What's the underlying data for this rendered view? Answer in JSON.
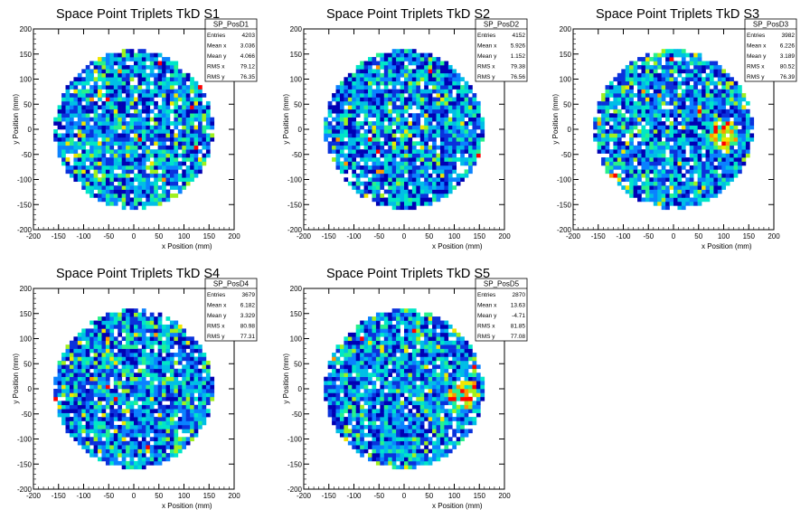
{
  "chart_data": [
    {
      "type": "heatmap",
      "title": "Space Point Triplets TkD S1",
      "xlabel": "x Position (mm)",
      "ylabel": "y Position (mm)",
      "xlim": [
        -200,
        200
      ],
      "ylim": [
        -200,
        200
      ],
      "xticks": [
        -200,
        -150,
        -100,
        -50,
        0,
        50,
        100,
        150,
        200
      ],
      "yticks": [
        -200,
        -150,
        -100,
        -50,
        0,
        50,
        100,
        150,
        200
      ],
      "detector_radius_mm": 160,
      "bin_width_mm": 8,
      "stats": {
        "name": "SP_PosD1",
        "rows": [
          [
            "Entries",
            "4203"
          ],
          [
            "Mean x",
            "3.036"
          ],
          [
            "Mean y",
            "4.066"
          ],
          [
            "RMS x",
            "79.12"
          ],
          [
            "RMS y",
            "76.35"
          ]
        ]
      },
      "seed": 11,
      "hot_spot": null
    },
    {
      "type": "heatmap",
      "title": "Space Point Triplets TkD S2",
      "xlabel": "x Position (mm)",
      "ylabel": "y Position (mm)",
      "xlim": [
        -200,
        200
      ],
      "ylim": [
        -200,
        200
      ],
      "xticks": [
        -200,
        -150,
        -100,
        -50,
        0,
        50,
        100,
        150,
        200
      ],
      "yticks": [
        -200,
        -150,
        -100,
        -50,
        0,
        50,
        100,
        150,
        200
      ],
      "detector_radius_mm": 160,
      "bin_width_mm": 8,
      "stats": {
        "name": "SP_PosD2",
        "rows": [
          [
            "Entries",
            "4152"
          ],
          [
            "Mean x",
            "5.926"
          ],
          [
            "Mean y",
            "1.152"
          ],
          [
            "RMS x",
            "79.38"
          ],
          [
            "RMS y",
            "76.56"
          ]
        ]
      },
      "seed": 23,
      "hot_spot": null
    },
    {
      "type": "heatmap",
      "title": "Space Point Triplets TkD S3",
      "xlabel": "x Position (mm)",
      "ylabel": "y Position (mm)",
      "xlim": [
        -200,
        200
      ],
      "ylim": [
        -200,
        200
      ],
      "xticks": [
        -200,
        -150,
        -100,
        -50,
        0,
        50,
        100,
        150,
        200
      ],
      "yticks": [
        -200,
        -150,
        -100,
        -50,
        0,
        50,
        100,
        150,
        200
      ],
      "detector_radius_mm": 160,
      "bin_width_mm": 8,
      "stats": {
        "name": "SP_PosD3",
        "rows": [
          [
            "Entries",
            "3982"
          ],
          [
            "Mean x",
            "6.226"
          ],
          [
            "Mean y",
            "3.189"
          ],
          [
            "RMS x",
            "80.52"
          ],
          [
            "RMS y",
            "76.39"
          ]
        ]
      },
      "seed": 37,
      "hot_spot": [
        100,
        -10
      ]
    },
    {
      "type": "heatmap",
      "title": "Space Point Triplets TkD S4",
      "xlabel": "x Position (mm)",
      "ylabel": "y Position (mm)",
      "xlim": [
        -200,
        200
      ],
      "ylim": [
        -200,
        200
      ],
      "xticks": [
        -200,
        -150,
        -100,
        -50,
        0,
        50,
        100,
        150,
        200
      ],
      "yticks": [
        -200,
        -150,
        -100,
        -50,
        0,
        50,
        100,
        150,
        200
      ],
      "detector_radius_mm": 160,
      "bin_width_mm": 8,
      "stats": {
        "name": "SP_PosD4",
        "rows": [
          [
            "Entries",
            "3679"
          ],
          [
            "Mean x",
            "6.182"
          ],
          [
            "Mean y",
            "3.329"
          ],
          [
            "RMS x",
            "80.98"
          ],
          [
            "RMS y",
            "77.31"
          ]
        ]
      },
      "seed": 41,
      "hot_spot": null
    },
    {
      "type": "heatmap",
      "title": "Space Point Triplets TkD S5",
      "xlabel": "x Position (mm)",
      "ylabel": "y Position (mm)",
      "xlim": [
        -200,
        200
      ],
      "ylim": [
        -200,
        200
      ],
      "xticks": [
        -200,
        -150,
        -100,
        -50,
        0,
        50,
        100,
        150,
        200
      ],
      "yticks": [
        -200,
        -150,
        -100,
        -50,
        0,
        50,
        100,
        150,
        200
      ],
      "detector_radius_mm": 160,
      "bin_width_mm": 8,
      "stats": {
        "name": "SP_PosD5",
        "rows": [
          [
            "Entries",
            "2870"
          ],
          [
            "Mean x",
            "13.63"
          ],
          [
            "Mean y",
            "-4.71"
          ],
          [
            "RMS x",
            "81.85"
          ],
          [
            "RMS y",
            "77.08"
          ]
        ]
      },
      "seed": 53,
      "hot_spot": [
        120,
        -10
      ]
    }
  ],
  "colors": {
    "palette": [
      "#0000b4",
      "#0a32dc",
      "#0a82ff",
      "#00bee6",
      "#00e6c8",
      "#28f08c",
      "#9ff01e",
      "#f0e600",
      "#ff9600",
      "#ff0000"
    ],
    "empty_bin": "#ffffff",
    "axis": "#000000"
  }
}
